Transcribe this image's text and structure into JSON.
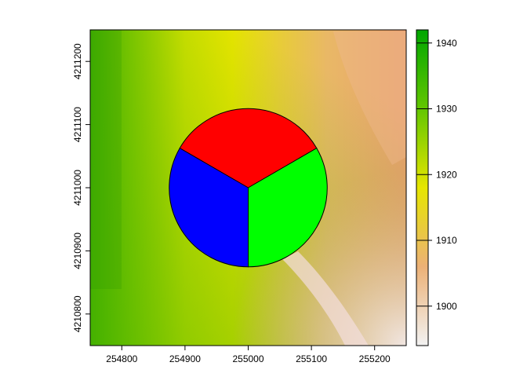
{
  "map": {
    "x_axis": {
      "range": [
        254750,
        255250
      ],
      "ticks": [
        254800,
        254900,
        255000,
        255100,
        255200
      ],
      "tick_labels": [
        "254800",
        "254900",
        "255000",
        "255100",
        "255200"
      ]
    },
    "y_axis": {
      "range": [
        4210750,
        4211250
      ],
      "ticks": [
        4210800,
        4210900,
        4211000,
        4211100,
        4211200
      ],
      "tick_labels": [
        "4210800",
        "4210900",
        "4211000",
        "4211100",
        "4211200"
      ]
    },
    "legend": {
      "placement": "right",
      "range": [
        1894,
        1942
      ],
      "ticks": [
        1900,
        1910,
        1920,
        1930,
        1940
      ],
      "tick_labels": [
        "1900",
        "1910",
        "1920",
        "1930",
        "1940"
      ],
      "ramp_colors": [
        "#F2F2F2",
        "#ECB176",
        "#E6E600",
        "#63C600",
        "#00A600"
      ]
    },
    "circle": {
      "center": [
        255000,
        4211000
      ],
      "radius": 125,
      "sectors": [
        {
          "color": "#FF0000",
          "from_deg": 30,
          "to_deg": 150
        },
        {
          "color": "#0000FF",
          "from_deg": 150,
          "to_deg": 270
        },
        {
          "color": "#00FF00",
          "from_deg": 270,
          "to_deg": 390
        }
      ]
    }
  }
}
